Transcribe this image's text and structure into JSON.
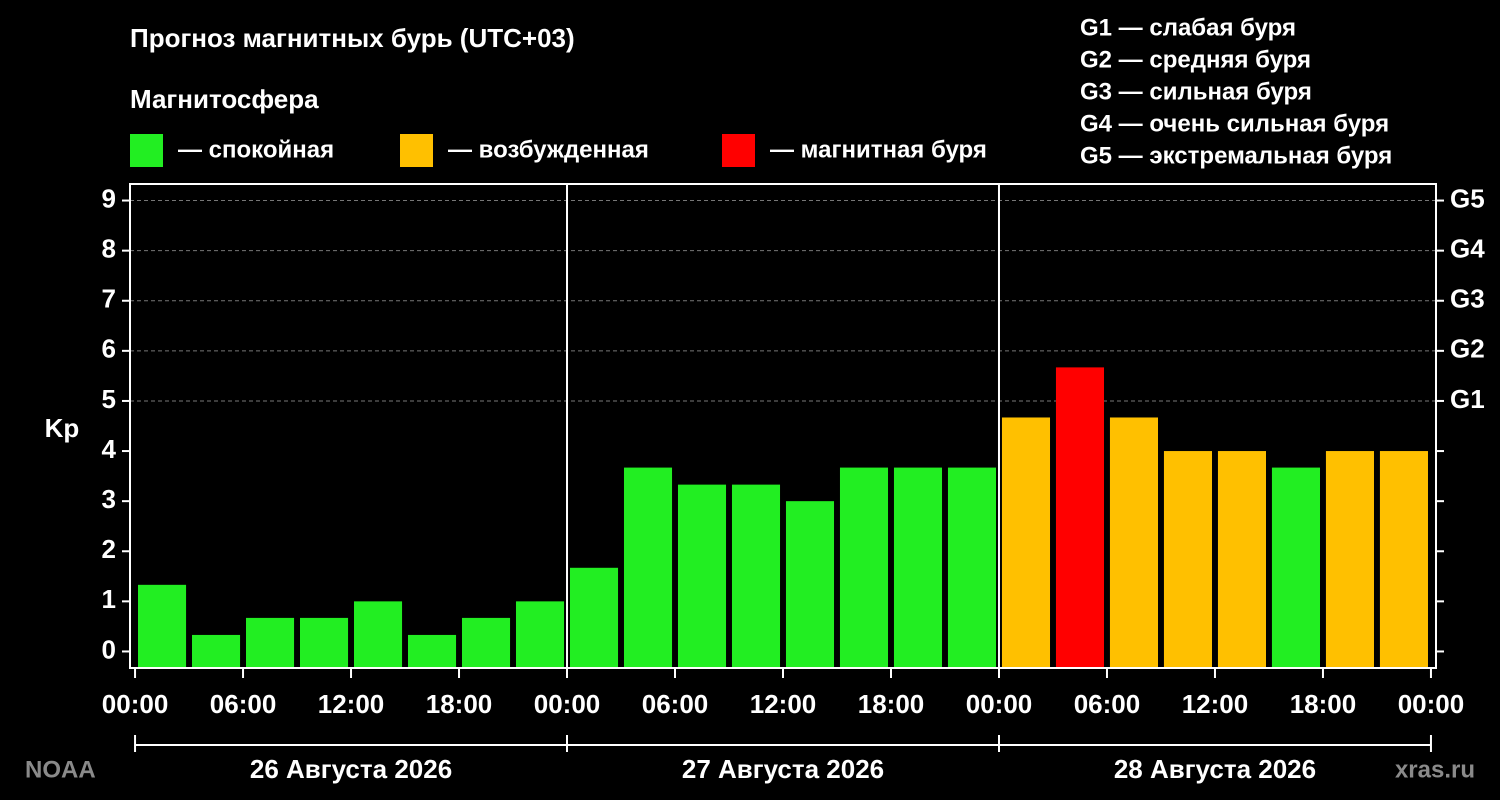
{
  "chart_data": {
    "type": "bar",
    "title": "Прогноз магнитных бурь (UTC+03)",
    "legend_title": "Магнитосфера",
    "legend": [
      {
        "name": "— спокойная",
        "color": "#22ee22"
      },
      {
        "name": "— возбужденная",
        "color": "#ffc000"
      },
      {
        "name": "— магнитная буря",
        "color": "#ff0000"
      }
    ],
    "scale_notes": [
      "G1 — слабая буря",
      "G2 — средняя буря",
      "G3 — сильная буря",
      "G4 — очень сильная буря",
      "G5 — экстремальная буря"
    ],
    "ylabel": "Kp",
    "x": [
      0,
      3,
      6,
      9,
      12,
      15,
      18,
      21,
      24,
      27,
      30,
      33,
      36,
      39,
      42,
      45,
      48,
      51,
      54,
      57,
      60,
      63,
      66,
      69
    ],
    "values": [
      1.33,
      0.33,
      0.67,
      0.67,
      1.0,
      0.33,
      0.67,
      1.0,
      1.67,
      3.67,
      3.33,
      3.33,
      3.0,
      3.67,
      3.67,
      3.67,
      4.67,
      5.67,
      4.67,
      4.0,
      4.0,
      3.67,
      4.0,
      4.0
    ],
    "colors": [
      "#22ee22",
      "#22ee22",
      "#22ee22",
      "#22ee22",
      "#22ee22",
      "#22ee22",
      "#22ee22",
      "#22ee22",
      "#22ee22",
      "#22ee22",
      "#22ee22",
      "#22ee22",
      "#22ee22",
      "#22ee22",
      "#22ee22",
      "#22ee22",
      "#ffc000",
      "#ff0000",
      "#ffc000",
      "#ffc000",
      "#ffc000",
      "#22ee22",
      "#ffc000",
      "#ffc000"
    ],
    "xlim": [
      -0.28,
      72.28
    ],
    "xticks": [
      {
        "value": 0,
        "label": "00:00"
      },
      {
        "value": 6,
        "label": "06:00"
      },
      {
        "value": 12,
        "label": "12:00"
      },
      {
        "value": 18,
        "label": "18:00"
      },
      {
        "value": 24,
        "label": "00:00"
      },
      {
        "value": 30,
        "label": "06:00"
      },
      {
        "value": 36,
        "label": "12:00"
      },
      {
        "value": 42,
        "label": "18:00"
      },
      {
        "value": 48,
        "label": "00:00"
      },
      {
        "value": 54,
        "label": "06:00"
      },
      {
        "value": 60,
        "label": "12:00"
      },
      {
        "value": 66,
        "label": "18:00"
      },
      {
        "value": 72,
        "label": "00:00"
      }
    ],
    "ylim": [
      -0.33,
      9.33
    ],
    "yticks": [
      0,
      1,
      2,
      3,
      4,
      5,
      6,
      7,
      8,
      9
    ],
    "y2lim": [
      -0.33,
      9.33
    ],
    "y2ticks": [
      {
        "value": 5,
        "label": "G1"
      },
      {
        "value": 6,
        "label": "G2"
      },
      {
        "value": 7,
        "label": "G3"
      },
      {
        "value": 8,
        "label": "G4"
      },
      {
        "value": 9,
        "label": "G5"
      }
    ],
    "grid": "y2",
    "x_groups": [
      {
        "label": "26 Августа 2026",
        "range": [
          0,
          24
        ]
      },
      {
        "label": "27 Августа 2026",
        "range": [
          24,
          48
        ]
      },
      {
        "label": "28 Августа 2026",
        "range": [
          48,
          72
        ]
      }
    ],
    "source": "NOAA",
    "credit": "xras.ru"
  }
}
